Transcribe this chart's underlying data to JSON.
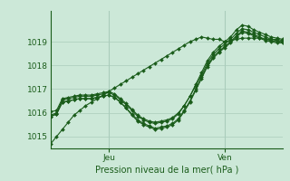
{
  "xlabel": "Pression niveau de la mer( hPa )",
  "background_color": "#cce8d8",
  "grid_color": "#aaccbb",
  "line_color": "#1a5c1a",
  "tick_color": "#1a5c1a",
  "label_color": "#1a5c1a",
  "ylim": [
    1014.5,
    1020.3
  ],
  "yticks": [
    1015,
    1016,
    1017,
    1018,
    1019
  ],
  "xlim": [
    0,
    40
  ],
  "vlines_x": [
    10,
    30
  ],
  "vline_labels": [
    "Jeu",
    "Ven"
  ],
  "series": [
    [
      1014.7,
      1015.0,
      1015.3,
      1015.6,
      1015.9,
      1016.1,
      1016.3,
      1016.45,
      1016.6,
      1016.75,
      1016.9,
      1017.05,
      1017.2,
      1017.35,
      1017.5,
      1017.65,
      1017.8,
      1017.95,
      1018.1,
      1018.25,
      1018.4,
      1018.55,
      1018.7,
      1018.85,
      1019.0,
      1019.1,
      1019.2,
      1019.15,
      1019.1,
      1019.1,
      1019.0,
      1019.05,
      1019.1,
      1019.15,
      1019.15,
      1019.15,
      1019.15,
      1019.1,
      1019.1,
      1019.05,
      1019.0
    ],
    [
      1015.9,
      1016.0,
      1016.55,
      1016.6,
      1016.65,
      1016.7,
      1016.7,
      1016.7,
      1016.75,
      1016.8,
      1016.85,
      1016.75,
      1016.55,
      1016.35,
      1016.1,
      1015.85,
      1015.7,
      1015.6,
      1015.55,
      1015.6,
      1015.65,
      1015.75,
      1015.95,
      1016.3,
      1016.7,
      1017.2,
      1017.7,
      1018.2,
      1018.55,
      1018.8,
      1019.0,
      1019.2,
      1019.5,
      1019.7,
      1019.65,
      1019.5,
      1019.4,
      1019.3,
      1019.2,
      1019.15,
      1019.1
    ],
    [
      1015.85,
      1015.95,
      1016.45,
      1016.5,
      1016.55,
      1016.6,
      1016.6,
      1016.6,
      1016.65,
      1016.7,
      1016.75,
      1016.65,
      1016.45,
      1016.2,
      1015.95,
      1015.7,
      1015.55,
      1015.45,
      1015.35,
      1015.4,
      1015.45,
      1015.55,
      1015.75,
      1016.1,
      1016.5,
      1017.0,
      1017.5,
      1018.0,
      1018.35,
      1018.6,
      1018.8,
      1019.0,
      1019.25,
      1019.45,
      1019.4,
      1019.3,
      1019.2,
      1019.1,
      1019.05,
      1019.0,
      1019.0
    ],
    [
      1015.85,
      1015.95,
      1016.45,
      1016.5,
      1016.55,
      1016.6,
      1016.6,
      1016.6,
      1016.65,
      1016.7,
      1016.75,
      1016.65,
      1016.45,
      1016.2,
      1015.9,
      1015.65,
      1015.5,
      1015.4,
      1015.3,
      1015.35,
      1015.4,
      1015.5,
      1015.7,
      1016.05,
      1016.45,
      1016.95,
      1017.45,
      1017.95,
      1018.3,
      1018.55,
      1018.75,
      1018.95,
      1019.2,
      1019.4,
      1019.35,
      1019.25,
      1019.15,
      1019.05,
      1019.0,
      1018.95,
      1018.95
    ],
    [
      1016.05,
      1016.1,
      1016.6,
      1016.65,
      1016.7,
      1016.75,
      1016.75,
      1016.75,
      1016.8,
      1016.85,
      1016.9,
      1016.8,
      1016.6,
      1016.4,
      1016.15,
      1015.9,
      1015.75,
      1015.65,
      1015.6,
      1015.65,
      1015.7,
      1015.8,
      1016.0,
      1016.3,
      1016.7,
      1017.15,
      1017.6,
      1018.1,
      1018.45,
      1018.7,
      1018.9,
      1019.1,
      1019.35,
      1019.55,
      1019.5,
      1019.4,
      1019.3,
      1019.2,
      1019.1,
      1019.1,
      1019.05
    ]
  ]
}
